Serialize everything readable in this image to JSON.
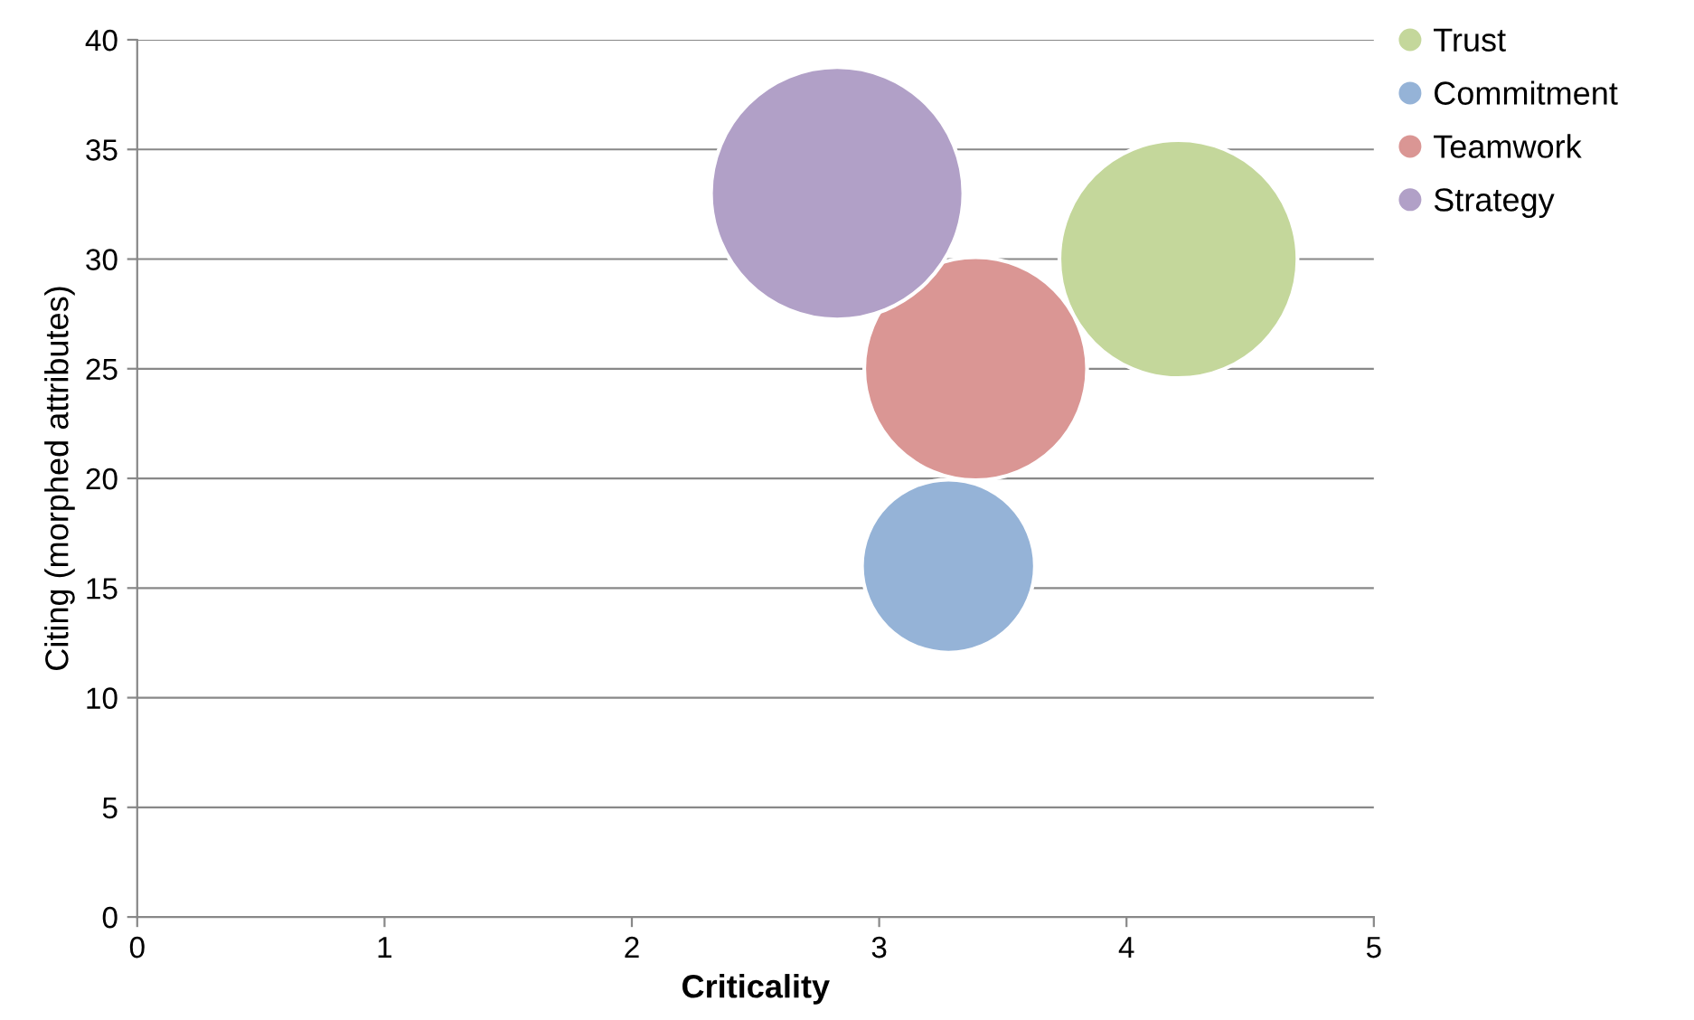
{
  "chart_data": {
    "type": "bubble",
    "xlabel": "Criticality",
    "ylabel": "Citing (morphed attributes)",
    "series": [
      {
        "name": "Trust",
        "color": "#c4d79b",
        "x": [
          4.21
        ],
        "values": [
          30
        ],
        "sizes": [
          0.89
        ]
      },
      {
        "name": "Commitment",
        "color": "#95b3d7",
        "x": [
          3.28
        ],
        "values": [
          16
        ],
        "sizes": [
          0.47
        ]
      },
      {
        "name": "Teamwork",
        "color": "#da9694",
        "x": [
          3.39
        ],
        "values": [
          25
        ],
        "sizes": [
          0.78
        ]
      },
      {
        "name": "Strategy",
        "color": "#b1a0c7",
        "x": [
          2.83
        ],
        "values": [
          33
        ],
        "sizes": [
          1
        ]
      }
    ],
    "xlim": [
      0,
      5
    ],
    "xticks": [
      0,
      1,
      2,
      3,
      4,
      5
    ],
    "ylim": [
      0,
      40
    ],
    "yticks": [
      0,
      5,
      10,
      15,
      20,
      25,
      30,
      35,
      40
    ],
    "grid": "y",
    "legend": "right"
  }
}
